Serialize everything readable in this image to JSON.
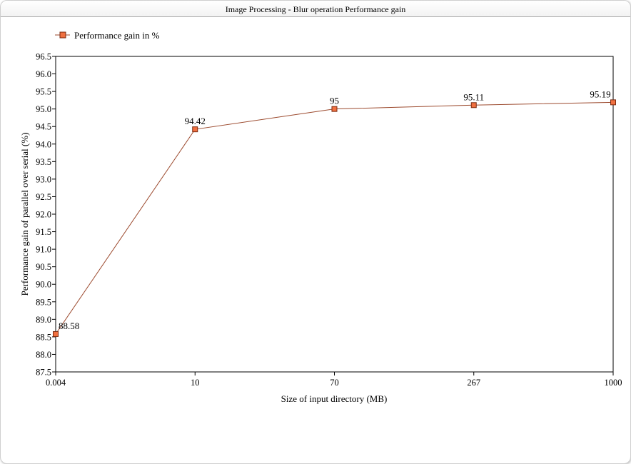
{
  "window": {
    "title": "Image Processing - Blur operation Performance gain"
  },
  "colors": {
    "line": "#9c4a2e",
    "marker_fill": "#f07040",
    "marker_stroke": "#7a2a10",
    "axis": "#000000"
  },
  "chart_data": {
    "type": "line",
    "title": "Image Processing - Blur operation Performance gain",
    "xlabel": "Size of input directory (MB)",
    "ylabel": "Performance gain of parallel over serial (%)",
    "categories": [
      "0.004",
      "10",
      "70",
      "267",
      "1000"
    ],
    "series": [
      {
        "name": "Performance gain in %",
        "values": [
          88.58,
          94.42,
          95,
          95.11,
          95.19
        ],
        "data_labels": [
          "88.58",
          "94.42",
          "95",
          "95.11",
          "95.19"
        ]
      }
    ],
    "ylim": [
      87.5,
      96.5
    ],
    "yticks": [
      "87.5",
      "88.0",
      "88.5",
      "89.0",
      "89.5",
      "90.0",
      "90.5",
      "91.0",
      "91.5",
      "92.0",
      "92.5",
      "93.0",
      "93.5",
      "94.0",
      "94.5",
      "95.0",
      "95.5",
      "96.0",
      "96.5"
    ],
    "grid": false,
    "legend_position": "top-left"
  }
}
